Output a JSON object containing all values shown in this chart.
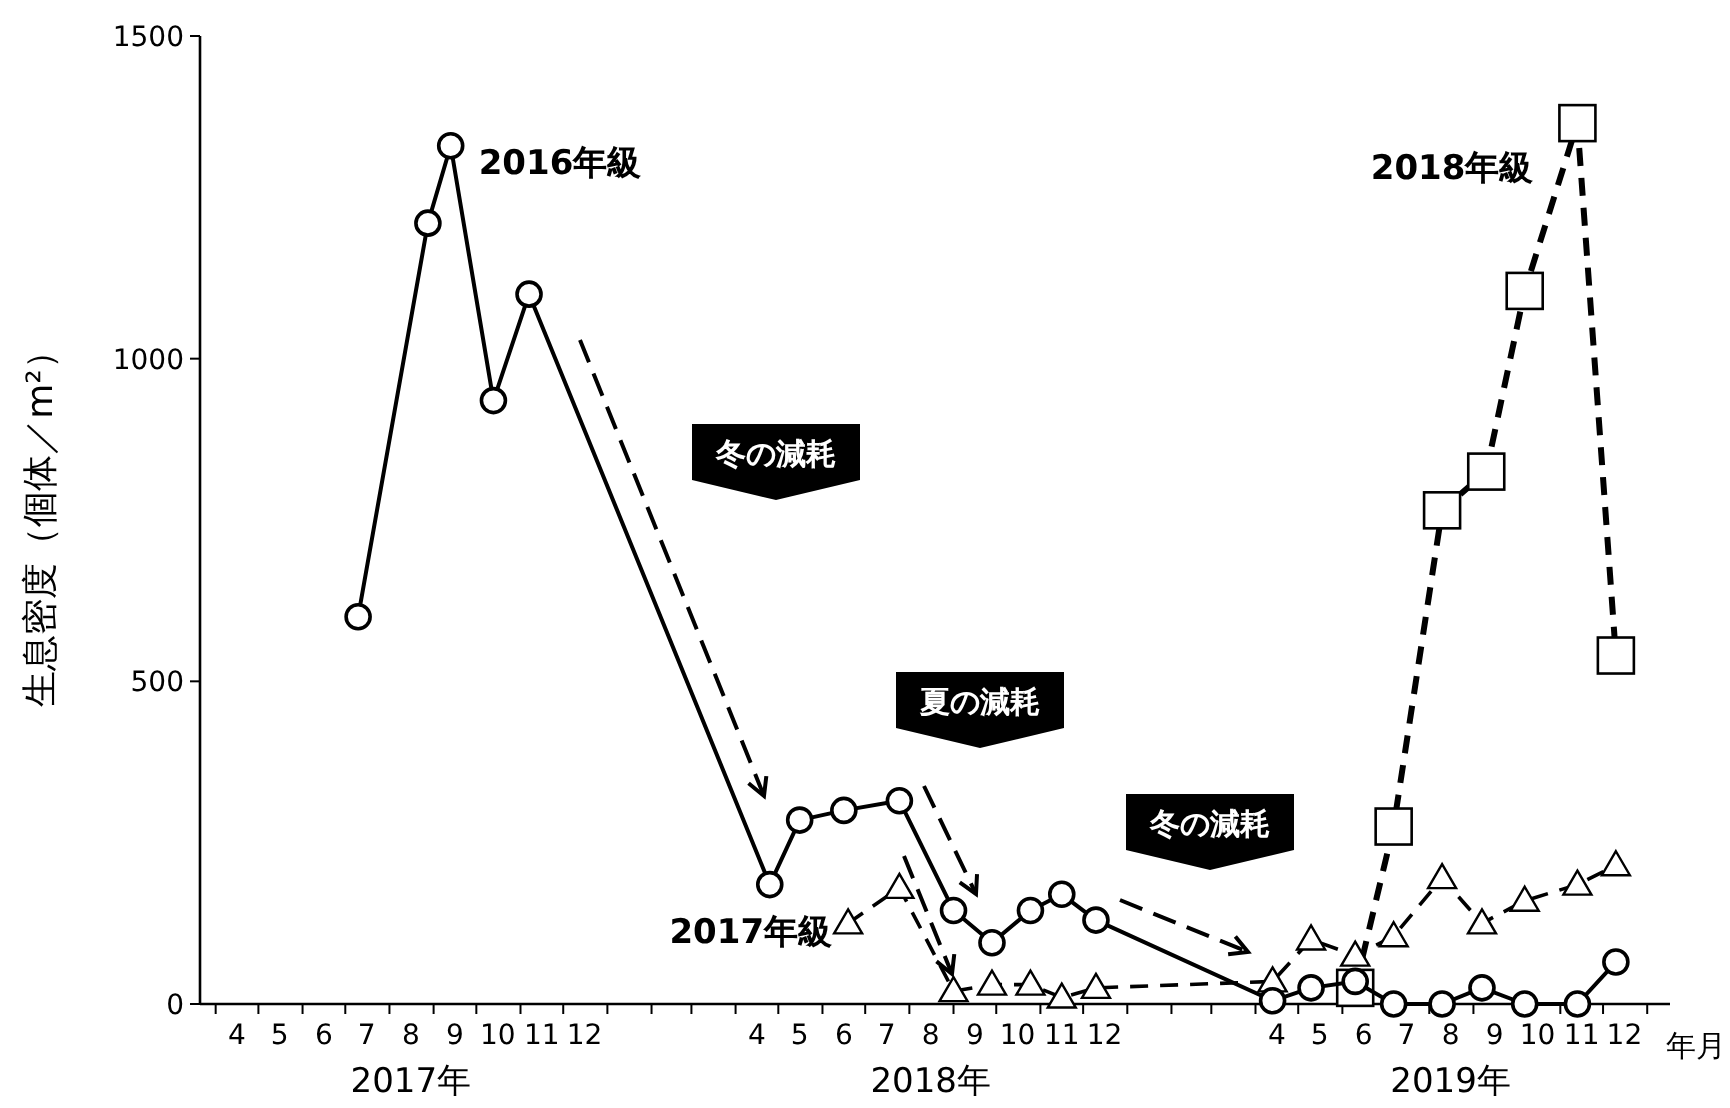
{
  "chart_data": {
    "type": "line",
    "ylabel": "生息密度（個体／m²）",
    "xlabel": "年月",
    "xlim": [
      "2017-03-21",
      "2020-01-17"
    ],
    "ylim": [
      0,
      1500
    ],
    "yticks": [
      0,
      500,
      1000,
      1500
    ],
    "xticks": [
      {
        "value": "2017-04-01",
        "label": null
      },
      {
        "value": "2017-04-16",
        "label": "4"
      },
      {
        "value": "2017-05-01",
        "label": null
      },
      {
        "value": "2017-05-16",
        "label": "5"
      },
      {
        "value": "2017-06-01",
        "label": null
      },
      {
        "value": "2017-06-16",
        "label": "6"
      },
      {
        "value": "2017-07-01",
        "label": null
      },
      {
        "value": "2017-07-16",
        "label": "7"
      },
      {
        "value": "2017-08-01",
        "label": null
      },
      {
        "value": "2017-08-16",
        "label": "8"
      },
      {
        "value": "2017-09-01",
        "label": null
      },
      {
        "value": "2017-09-16",
        "label": "9"
      },
      {
        "value": "2017-10-01",
        "label": null
      },
      {
        "value": "2017-10-16",
        "label": "10"
      },
      {
        "value": "2017-11-01",
        "label": null
      },
      {
        "value": "2017-11-16",
        "label": "11"
      },
      {
        "value": "2017-12-01",
        "label": null
      },
      {
        "value": "2017-12-16",
        "label": "12"
      },
      {
        "value": "2018-01-01",
        "label": null
      },
      {
        "value": "2018-02-01",
        "label": null
      },
      {
        "value": "2018-03-01",
        "label": null
      },
      {
        "value": "2018-04-01",
        "label": null
      },
      {
        "value": "2018-04-16",
        "label": "4"
      },
      {
        "value": "2018-05-01",
        "label": null
      },
      {
        "value": "2018-05-16",
        "label": "5"
      },
      {
        "value": "2018-06-01",
        "label": null
      },
      {
        "value": "2018-06-16",
        "label": "6"
      },
      {
        "value": "2018-07-01",
        "label": null
      },
      {
        "value": "2018-07-16",
        "label": "7"
      },
      {
        "value": "2018-08-01",
        "label": null
      },
      {
        "value": "2018-08-16",
        "label": "8"
      },
      {
        "value": "2018-09-01",
        "label": null
      },
      {
        "value": "2018-09-16",
        "label": "9"
      },
      {
        "value": "2018-10-01",
        "label": null
      },
      {
        "value": "2018-10-16",
        "label": "10"
      },
      {
        "value": "2018-11-01",
        "label": null
      },
      {
        "value": "2018-11-16",
        "label": "11"
      },
      {
        "value": "2018-12-01",
        "label": null
      },
      {
        "value": "2018-12-16",
        "label": "12"
      },
      {
        "value": "2019-01-01",
        "label": null
      },
      {
        "value": "2019-02-01",
        "label": null
      },
      {
        "value": "2019-03-01",
        "label": null
      },
      {
        "value": "2019-04-01",
        "label": null
      },
      {
        "value": "2019-04-16",
        "label": "4"
      },
      {
        "value": "2019-05-01",
        "label": null
      },
      {
        "value": "2019-05-16",
        "label": "5"
      },
      {
        "value": "2019-06-01",
        "label": null
      },
      {
        "value": "2019-06-16",
        "label": "6"
      },
      {
        "value": "2019-07-01",
        "label": null
      },
      {
        "value": "2019-07-16",
        "label": "7"
      },
      {
        "value": "2019-08-01",
        "label": null
      },
      {
        "value": "2019-08-16",
        "label": "8"
      },
      {
        "value": "2019-09-01",
        "label": null
      },
      {
        "value": "2019-09-16",
        "label": "9"
      },
      {
        "value": "2019-10-01",
        "label": null
      },
      {
        "value": "2019-10-16",
        "label": "10"
      },
      {
        "value": "2019-11-01",
        "label": null
      },
      {
        "value": "2019-11-16",
        "label": "11"
      },
      {
        "value": "2019-12-01",
        "label": null
      },
      {
        "value": "2019-12-16",
        "label": "12"
      },
      {
        "value": "2020-01-01",
        "label": null
      }
    ],
    "grid": false,
    "legend": false,
    "series": [
      {
        "name": "2016年級",
        "color": "#000000",
        "marker": "circle",
        "line_style": "solid",
        "x": [
          "2017-07-10",
          "2017-08-28",
          "2017-09-13",
          "2017-10-13",
          "2017-11-07",
          "2018-04-25",
          "2018-05-16",
          "2018-06-16",
          "2018-07-25",
          "2018-09-01",
          "2018-09-28",
          "2018-10-25",
          "2018-11-16",
          "2018-12-10",
          "2019-04-13",
          "2019-05-10",
          "2019-06-10",
          "2019-07-07",
          "2019-08-10",
          "2019-09-07",
          "2019-10-07",
          "2019-11-13",
          "2019-12-10"
        ],
        "values": [
          600,
          1210,
          1330,
          935,
          1100,
          185,
          285,
          300,
          315,
          145,
          95,
          145,
          170,
          130,
          5,
          25,
          35,
          0,
          0,
          25,
          0,
          0,
          65
        ]
      },
      {
        "name": "2017年級",
        "color": "#000000",
        "marker": "triangle",
        "line_style": "dashed",
        "x": [
          "2018-06-19",
          "2018-07-25",
          "2018-09-01",
          "2018-09-28",
          "2018-10-25",
          "2018-11-16",
          "2018-12-10",
          "2019-04-13",
          "2019-05-10",
          "2019-06-10",
          "2019-07-07",
          "2019-08-10",
          "2019-09-07",
          "2019-10-07",
          "2019-11-13",
          "2019-12-10"
        ],
        "values": [
          125,
          180,
          20,
          30,
          30,
          10,
          25,
          35,
          100,
          75,
          105,
          195,
          125,
          160,
          185,
          215
        ]
      },
      {
        "name": "2018年級",
        "color": "#000000",
        "marker": "square",
        "line_style": "dashed",
        "x": [
          "2019-06-10",
          "2019-07-07",
          "2019-08-10",
          "2019-09-10",
          "2019-10-07",
          "2019-11-13",
          "2019-12-10"
        ],
        "values": [
          25,
          275,
          765,
          825,
          1105,
          1365,
          540
        ]
      }
    ],
    "annotations": [
      "冬の減耗",
      "夏の減耗",
      "冬の減耗",
      "2017年",
      "2018年",
      "2019年"
    ]
  }
}
